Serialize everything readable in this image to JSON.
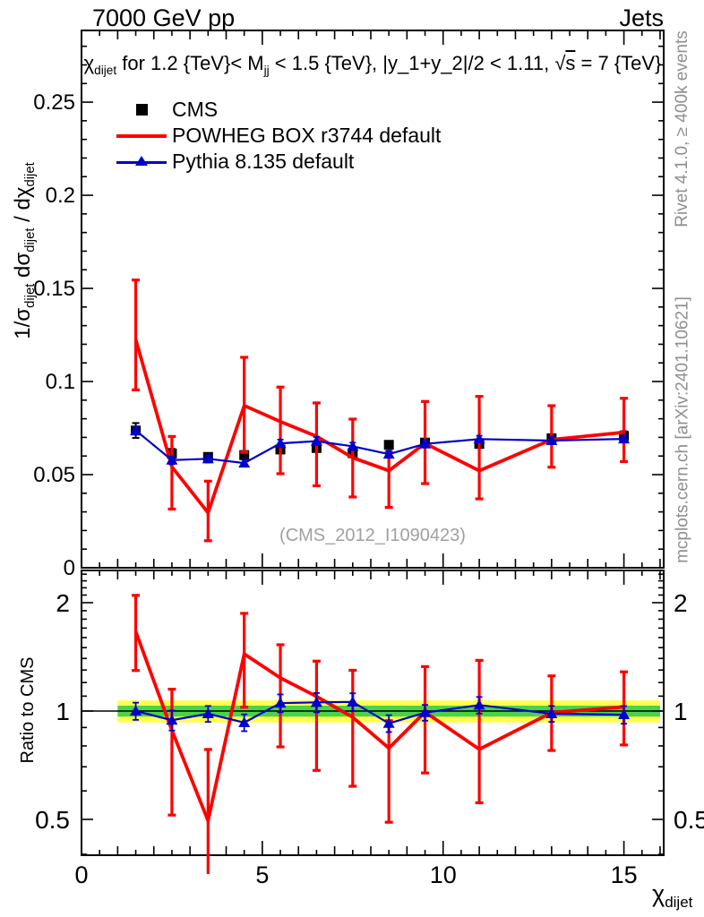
{
  "header": {
    "left": "7000 GeV pp",
    "right": "Jets"
  },
  "plot_title": {
    "chi": "χ",
    "chi_sub": "dijet",
    "part1": " for 1.2 {TeV}< M",
    "m_sub": "jj",
    "part2": " < 1.5 {TeV}, |y_1+y_2|/2 < 1.11, ",
    "sqrt": "√",
    "s": "s",
    "part3": " = 7 {TeV}"
  },
  "y_axis_title": {
    "p1": "1/σ",
    "s1": "dijet",
    "p2": "  dσ",
    "s2": "dijet",
    "p3": " / dχ",
    "s3": "dijet"
  },
  "ratio_axis_title": "Ratio to CMS",
  "x_axis_title": {
    "chi": "χ",
    "sub": "dijet"
  },
  "watermark": "(CMS_2012_I1090423)",
  "side_notes": {
    "top": "Rivet 4.1.0, ≥ 400k events",
    "bottom": "mcplots.cern.ch [arXiv:2401.10621]"
  },
  "legend": {
    "items": [
      {
        "label": "CMS"
      },
      {
        "label": "POWHEG BOX r3744 default"
      },
      {
        "label": "Pythia 8.135 default"
      }
    ]
  },
  "colors": {
    "black": "#000000",
    "red": "#ff0000",
    "blue": "#0000cc",
    "gray": "#8f8f8f",
    "band_yellow": "#ffff4d",
    "band_green": "#4ad24a",
    "watermark": "#a0a0a0"
  },
  "chart_data": {
    "type": "line",
    "title": "χ_dijet for 1.2 {TeV}< M_jj < 1.5 {TeV}, |y_1+y_2|/2 < 1.11, √s = 7 {TeV}",
    "xlabel": "χ_dijet",
    "ylabel_main": "1/σ_dijet dσ_dijet / dχ_dijet",
    "ylabel_ratio": "Ratio to CMS",
    "x": [
      1.5,
      2.5,
      3.5,
      4.5,
      5.5,
      6.5,
      7.5,
      8.5,
      9.5,
      11,
      13,
      15
    ],
    "bin_edges": [
      1,
      2,
      3,
      4,
      5,
      6,
      7,
      8,
      9,
      10,
      12,
      14,
      16
    ],
    "axes": {
      "x": {
        "min": 0,
        "max": 16.1,
        "ticks_major": [
          0,
          5,
          10,
          15
        ],
        "tick_labels": [
          "0",
          "5",
          "10",
          "15"
        ],
        "minor_step": 0.5
      },
      "y_main": {
        "min": 0,
        "max": 0.2885,
        "majors": [
          0,
          0.05,
          0.1,
          0.15,
          0.2,
          0.25
        ],
        "labels": [
          "0",
          "0.05",
          "0.1",
          "0.15",
          "0.2",
          "0.25"
        ],
        "minor_step": 0.01
      },
      "y_ratio": {
        "min": 0.397,
        "max": 2.46,
        "scale": "log2",
        "majors": [
          0.5,
          1,
          2
        ],
        "labels": [
          "0.5",
          "1",
          "2"
        ]
      }
    },
    "series": [
      {
        "name": "CMS",
        "marker": "square",
        "color": "#000000",
        "values": [
          0.0737,
          0.0613,
          0.0595,
          0.0605,
          0.0635,
          0.0643,
          0.0615,
          0.066,
          0.0672,
          0.0665,
          0.0695,
          0.0708
        ],
        "errors": [
          0.004,
          0.0025,
          0.002,
          0.002,
          0.002,
          0.002,
          0.002,
          0.002,
          0.002,
          0.002,
          0.002,
          0.0025
        ]
      },
      {
        "name": "POWHEG BOX r3744 default",
        "marker": "none",
        "color": "#ff0000",
        "values": [
          0.1225,
          0.0542,
          0.0295,
          0.0871,
          0.0785,
          0.0706,
          0.0591,
          0.0521,
          0.0668,
          0.0521,
          0.0688,
          0.0727
        ],
        "err_lo": [
          0.0955,
          0.0315,
          0.0145,
          0.062,
          0.0505,
          0.044,
          0.038,
          0.0324,
          0.0452,
          0.037,
          0.054,
          0.057
        ],
        "err_hi": [
          0.1545,
          0.0705,
          0.0465,
          0.113,
          0.097,
          0.0885,
          0.0798,
          0.062,
          0.0893,
          0.092,
          0.087,
          0.091
        ]
      },
      {
        "name": "Pythia 8.135 default",
        "marker": "triangle",
        "color": "#0000cc",
        "values": [
          0.0737,
          0.0578,
          0.0585,
          0.0562,
          0.0668,
          0.068,
          0.0652,
          0.061,
          0.0665,
          0.0691,
          0.0683,
          0.0692
        ],
        "errors": [
          0.002,
          0.0022,
          0.002,
          0.0018,
          0.002,
          0.0022,
          0.002,
          0.0018,
          0.0018,
          0.0018,
          0.0018,
          0.002
        ]
      }
    ],
    "ratio": {
      "band_x": [
        1,
        16
      ],
      "band_yellow": [
        0.93,
        1.07
      ],
      "band_green": [
        0.965,
        1.035
      ],
      "reference_line": 1,
      "red": {
        "values": [
          1.662,
          0.884,
          0.496,
          1.44,
          1.236,
          1.098,
          0.961,
          0.789,
          0.994,
          0.783,
          0.99,
          1.027
        ],
        "err_lo": [
          1.296,
          0.514,
          0.244,
          1.025,
          0.795,
          0.684,
          0.618,
          0.491,
          0.673,
          0.556,
          0.777,
          0.805
        ],
        "err_hi": [
          2.096,
          1.15,
          0.782,
          1.868,
          1.528,
          1.376,
          1.298,
          0.94,
          1.329,
          1.383,
          1.252,
          1.285
        ]
      },
      "blue": {
        "values": [
          1.0,
          0.943,
          0.983,
          0.929,
          1.052,
          1.057,
          1.06,
          0.924,
          0.99,
          1.039,
          0.983,
          0.977
        ],
        "errors": [
          0.055,
          0.06,
          0.05,
          0.05,
          0.06,
          0.065,
          0.06,
          0.05,
          0.05,
          0.055,
          0.05,
          0.055
        ]
      }
    }
  }
}
